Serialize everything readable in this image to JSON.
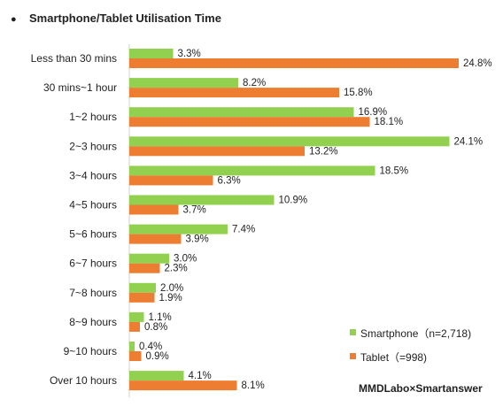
{
  "chart_data": {
    "type": "bar",
    "orientation": "horizontal",
    "title": "Smartphone/Tablet Utilisation Time",
    "categories": [
      "Less than 30 mins",
      "30 mins~1 hour",
      "1~2 hours",
      "2~3 hours",
      "3~4 hours",
      "4~5 hours",
      "5~6 hours",
      "6~7 hours",
      "7~8 hours",
      "8~9 hours",
      "9~10 hours",
      "Over 10 hours"
    ],
    "series": [
      {
        "name": "Smartphone（n=2,718)",
        "color": "#92d050",
        "values": [
          3.3,
          8.2,
          16.9,
          24.1,
          18.5,
          10.9,
          7.4,
          3.0,
          2.0,
          1.1,
          0.4,
          4.1
        ],
        "labels": [
          "3.3%",
          "8.2%",
          "16.9%",
          "24.1%",
          "18.5%",
          "10.9%",
          "7.4%",
          "3.0%",
          "2.0%",
          "1.1%",
          "0.4%",
          "4.1%"
        ]
      },
      {
        "name": "Tablet（=998)",
        "color": "#ed7d31",
        "values": [
          24.8,
          15.8,
          18.1,
          13.2,
          6.3,
          3.7,
          3.9,
          2.3,
          1.9,
          0.8,
          0.9,
          8.1
        ],
        "labels": [
          "24.8%",
          "15.8%",
          "18.1%",
          "13.2%",
          "6.3%",
          "3.7%",
          "3.9%",
          "2.3%",
          "1.9%",
          "0.8%",
          "0.9%",
          "8.1%"
        ]
      }
    ],
    "xlim": [
      0,
      26
    ],
    "grid": false,
    "legend_position": "bottom-right",
    "credit": "MMDLabo×Smartanswer"
  },
  "title_bullet": "●"
}
